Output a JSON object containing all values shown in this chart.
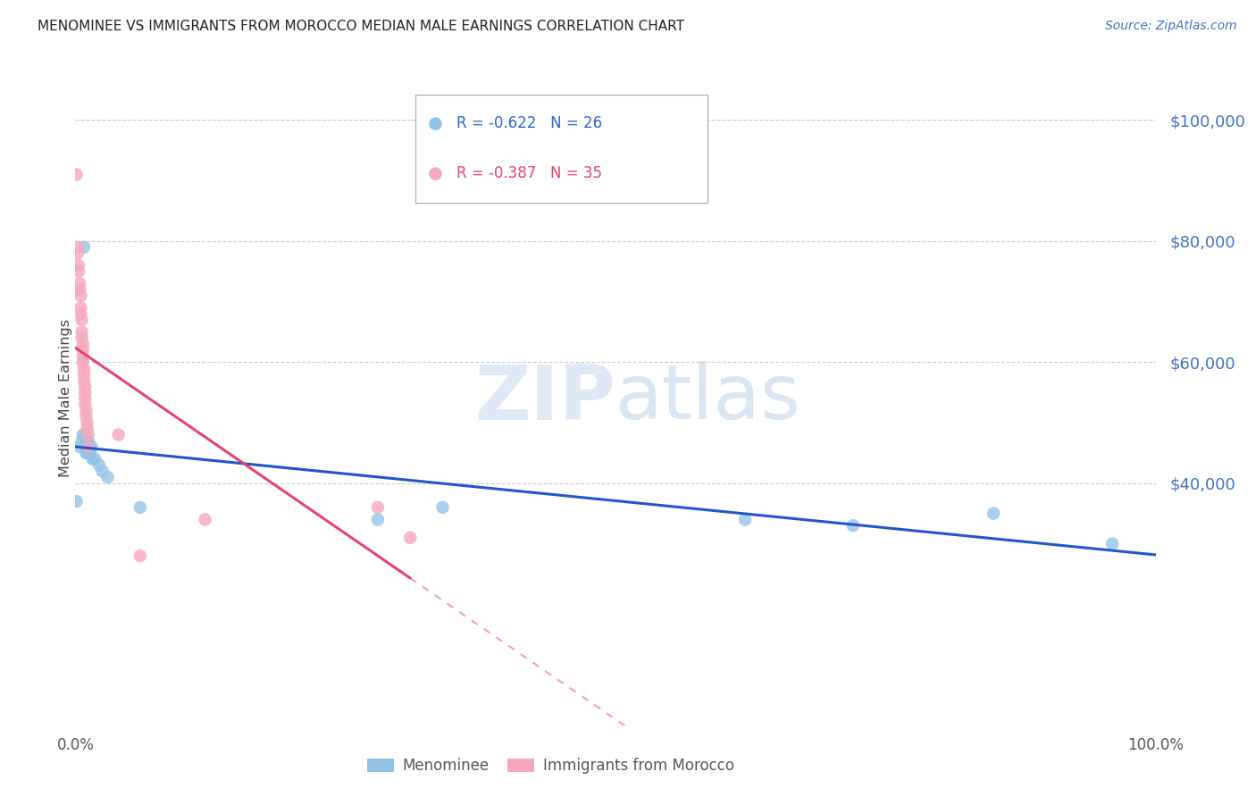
{
  "title": "MENOMINEE VS IMMIGRANTS FROM MOROCCO MEDIAN MALE EARNINGS CORRELATION CHART",
  "source": "Source: ZipAtlas.com",
  "ylabel": "Median Male Earnings",
  "watermark_zip": "ZIP",
  "watermark_atlas": "atlas",
  "ylim": [
    0,
    108000
  ],
  "xlim": [
    0,
    1.0
  ],
  "ytick_vals": [
    40000,
    60000,
    80000,
    100000
  ],
  "ytick_labels": [
    "$40,000",
    "$60,000",
    "$80,000",
    "$100,000"
  ],
  "legend1_r": "-0.622",
  "legend1_n": "26",
  "legend2_r": "-0.387",
  "legend2_n": "35",
  "series1_color": "#93c4e8",
  "series2_color": "#f5a8bc",
  "line1_color": "#2255cc",
  "line2_color": "#e8446a",
  "line2_dash_color": "#e8446a",
  "menominee_x": [
    0.001,
    0.004,
    0.006,
    0.007,
    0.008,
    0.009,
    0.009,
    0.01,
    0.011,
    0.011,
    0.012,
    0.013,
    0.014,
    0.015,
    0.016,
    0.018,
    0.022,
    0.025,
    0.03,
    0.06,
    0.28,
    0.34,
    0.62,
    0.72,
    0.85,
    0.96
  ],
  "menominee_y": [
    37000,
    46000,
    47000,
    48000,
    79000,
    48000,
    46000,
    45000,
    47000,
    45000,
    47000,
    46000,
    45000,
    46000,
    44000,
    44000,
    43000,
    42000,
    41000,
    36000,
    34000,
    36000,
    34000,
    33000,
    35000,
    30000
  ],
  "morocco_x": [
    0.001,
    0.002,
    0.002,
    0.003,
    0.003,
    0.004,
    0.004,
    0.005,
    0.005,
    0.005,
    0.006,
    0.006,
    0.006,
    0.007,
    0.007,
    0.007,
    0.007,
    0.008,
    0.008,
    0.008,
    0.009,
    0.009,
    0.009,
    0.009,
    0.01,
    0.01,
    0.011,
    0.011,
    0.012,
    0.012,
    0.04,
    0.06,
    0.12,
    0.28,
    0.31
  ],
  "morocco_y": [
    91000,
    79000,
    78000,
    76000,
    75000,
    73000,
    72000,
    71000,
    69000,
    68000,
    67000,
    65000,
    64000,
    63000,
    62000,
    61000,
    60000,
    59000,
    58000,
    57000,
    56000,
    55000,
    54000,
    53000,
    52000,
    51000,
    50000,
    49000,
    48000,
    46000,
    48000,
    28000,
    34000,
    36000,
    31000
  ]
}
